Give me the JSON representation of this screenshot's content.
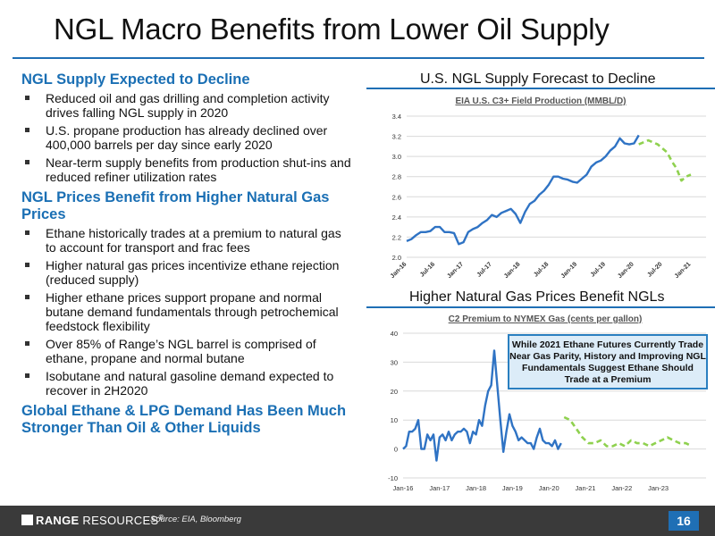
{
  "slide": {
    "title": "NGL Macro Benefits from Lower Oil Supply",
    "page_number": "16",
    "source": "Source: EIA, Bloomberg",
    "logo": {
      "bold": "RANGE",
      "thin": "RESOURCES",
      "mark": "®"
    },
    "accent": "#1f6fb5"
  },
  "sections": [
    {
      "heading": "NGL Supply Expected to Decline",
      "bullets": [
        "Reduced oil and gas drilling and completion activity drives falling NGL supply in 2020",
        "U.S. propane production has already declined over 400,000 barrels per day since early 2020",
        "Near-term supply benefits from production shut-ins and reduced refiner utilization rates"
      ]
    },
    {
      "heading": "NGL Prices Benefit from Higher Natural Gas Prices",
      "bullets": [
        "Ethane historically trades at a premium to natural gas to account for transport and frac fees",
        "Higher natural gas prices incentivize ethane rejection (reduced supply)",
        "Higher ethane prices support propane and normal butane demand fundamentals through petrochemical feedstock flexibility",
        "Over 85% of Range’s NGL barrel is comprised of ethane, propane and normal butane",
        "Isobutane and natural gasoline demand expected to recover in 2H2020"
      ]
    },
    {
      "heading": "Global Ethane & LPG Demand Has Been Much Stronger Than Oil & Other Liquids",
      "bullets": []
    }
  ],
  "chart_data": [
    {
      "type": "line",
      "panel_title": "U.S. NGL Supply Forecast to Decline",
      "title": "EIA U.S. C3+ Field Production (MMBL/D)",
      "ylim": [
        2.0,
        3.4
      ],
      "yticks": [
        "2.0",
        "2.2",
        "2.4",
        "2.6",
        "2.8",
        "3.0",
        "3.2",
        "3.4"
      ],
      "xticks": [
        "Jan-16",
        "Jul-16",
        "Jan-17",
        "Jul-17",
        "Jan-18",
        "Jul-18",
        "Jan-19",
        "Jul-19",
        "Jan-20",
        "Jul-20",
        "Jan-21"
      ],
      "grid": true,
      "series": [
        {
          "style": "solid",
          "color": "#2f73c4",
          "x": [
            0,
            1,
            2,
            3,
            4,
            5,
            6,
            7,
            8,
            9,
            10,
            11,
            12,
            13,
            14,
            15,
            16,
            17,
            18,
            19,
            20,
            21,
            22,
            23,
            24,
            25,
            26,
            27,
            28,
            29,
            30,
            31,
            32,
            33,
            34,
            35,
            36,
            37,
            38,
            39,
            40,
            41,
            42,
            43,
            44,
            45,
            46,
            47,
            48,
            49
          ],
          "values": [
            2.16,
            2.18,
            2.22,
            2.25,
            2.25,
            2.26,
            2.3,
            2.3,
            2.25,
            2.25,
            2.24,
            2.13,
            2.15,
            2.25,
            2.28,
            2.3,
            2.34,
            2.37,
            2.42,
            2.4,
            2.44,
            2.46,
            2.48,
            2.43,
            2.34,
            2.45,
            2.53,
            2.56,
            2.62,
            2.66,
            2.72,
            2.8,
            2.8,
            2.78,
            2.77,
            2.75,
            2.74,
            2.78,
            2.82,
            2.9,
            2.94,
            2.96,
            3.0,
            3.06,
            3.1,
            3.18,
            3.13,
            3.12,
            3.13,
            3.21
          ]
        },
        {
          "style": "dashed",
          "color": "#8fd14f",
          "x": [
            49,
            50,
            51,
            52,
            53,
            54,
            55,
            56,
            57,
            58,
            59,
            60
          ],
          "values": [
            3.12,
            3.14,
            3.16,
            3.14,
            3.12,
            3.08,
            3.04,
            2.95,
            2.88,
            2.76,
            2.8,
            2.82
          ]
        }
      ]
    },
    {
      "type": "line",
      "panel_title": "Higher Natural Gas Prices Benefit NGLs",
      "title": "C2 Premium to NYMEX Gas (cents per gallon)",
      "ylim": [
        -10,
        40
      ],
      "yticks": [
        "-10",
        "0",
        "10",
        "20",
        "30",
        "40"
      ],
      "xticks": [
        "Jan-16",
        "Jan-17",
        "Jan-18",
        "Jan-19",
        "Jan-20",
        "Jan-21",
        "Jan-22",
        "Jan-23"
      ],
      "grid": true,
      "annotation": "While 2021 Ethane Futures Currently Trade Near Gas Parity, History and Improving NGL Fundamentals Suggest Ethane Should Trade at a Premium",
      "series": [
        {
          "style": "solid",
          "color": "#2f73c4",
          "x": [
            0,
            1,
            2,
            3,
            4,
            5,
            6,
            7,
            8,
            9,
            10,
            11,
            12,
            13,
            14,
            15,
            16,
            17,
            18,
            19,
            20,
            21,
            22,
            23,
            24,
            25,
            26,
            27,
            28,
            29,
            30,
            31,
            32,
            33,
            34,
            35,
            36,
            37,
            38,
            39,
            40,
            41,
            42,
            43,
            44,
            45,
            46,
            47,
            48,
            49,
            50,
            51,
            52
          ],
          "values": [
            0,
            1,
            6,
            6,
            7,
            10,
            0,
            0,
            5,
            3,
            5,
            -4,
            4,
            5,
            3,
            6,
            3,
            5,
            6,
            6,
            7,
            6,
            2,
            6,
            5,
            10,
            8,
            15,
            20,
            22,
            34,
            22,
            10,
            -1,
            6,
            12,
            8,
            6,
            3,
            4,
            3,
            2,
            2,
            0,
            4,
            7,
            3,
            2,
            2,
            1,
            3,
            0,
            2
          ]
        },
        {
          "style": "dashed",
          "color": "#8fd14f",
          "x": [
            53,
            55,
            57,
            59,
            61,
            63,
            65,
            67,
            69,
            71,
            73,
            75,
            77,
            79,
            81,
            83,
            85,
            87,
            89,
            91,
            93,
            95
          ],
          "values": [
            11,
            10,
            7,
            4,
            2,
            2,
            3,
            1,
            1,
            2,
            1,
            3,
            2,
            2,
            1,
            2,
            3,
            4,
            3,
            2,
            2,
            1
          ]
        }
      ]
    }
  ]
}
